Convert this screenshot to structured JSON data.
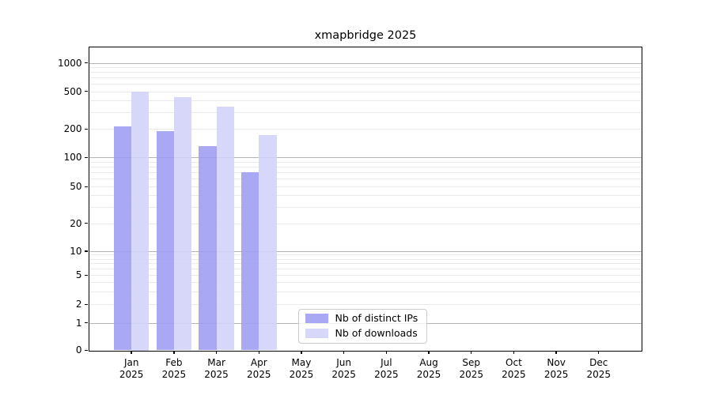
{
  "chart_data": {
    "type": "bar",
    "title": "xmapbridge 2025",
    "x_categories": [
      "Jan",
      "Feb",
      "Mar",
      "Apr",
      "May",
      "Jun",
      "Jul",
      "Aug",
      "Sep",
      "Oct",
      "Nov",
      "Dec"
    ],
    "x_year": "2025",
    "series": [
      {
        "name": "Nb of distinct IPs",
        "color": "#9c9cf2",
        "values": [
          210,
          190,
          130,
          70,
          null,
          null,
          null,
          null,
          null,
          null,
          null,
          null
        ]
      },
      {
        "name": "Nb of downloads",
        "color": "#d2d2f8",
        "values": [
          500,
          430,
          340,
          170,
          null,
          null,
          null,
          null,
          null,
          null,
          null,
          null
        ]
      }
    ],
    "y_ticks": [
      0,
      1,
      2,
      5,
      10,
      20,
      50,
      100,
      200,
      500,
      1000
    ],
    "y_scale": "symlog",
    "ylim": [
      0,
      1400
    ],
    "grid": true,
    "legend_position": "inside-bottom-center"
  },
  "colors": {
    "major_grid": "#b4b4b4",
    "minor_grid": "#eaeaea",
    "axis": "#000000",
    "background": "#ffffff",
    "legend_border": "#cccccc"
  }
}
